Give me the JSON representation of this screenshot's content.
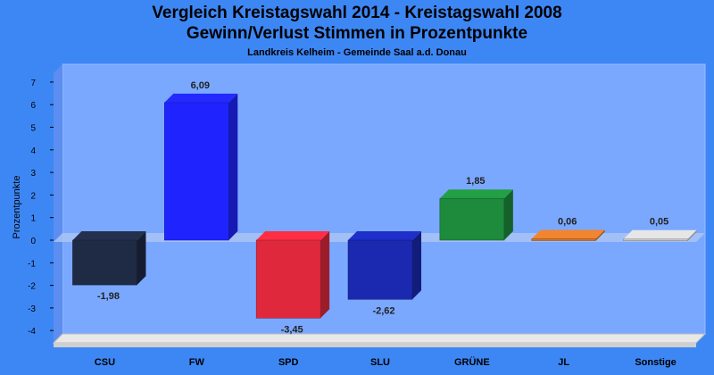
{
  "chart_data": {
    "type": "bar",
    "title": "Vergleich Kreistagswahl 2014 - Kreistagswahl 2008",
    "subtitle": "Gewinn/Verlust Stimmen in Prozentpunkte",
    "caption": "Landkreis Kelheim - Gemeinde Saal a.d. Donau",
    "ylabel": "Prozentpunkte",
    "xlabel": "",
    "ylim": [
      -4,
      7
    ],
    "yticks": [
      7,
      6,
      5,
      4,
      3,
      2,
      1,
      0,
      -1,
      -2,
      -3,
      -4
    ],
    "grid": false,
    "legend": "none",
    "categories": [
      "CSU",
      "FW",
      "SPD",
      "SLU",
      "GRÜNE",
      "JL",
      "Sonstige"
    ],
    "values": [
      -1.98,
      6.09,
      -3.45,
      -2.62,
      1.85,
      0.06,
      0.05
    ],
    "value_labels": [
      "-1,98",
      "6,09",
      "-3,45",
      "-2,62",
      "1,85",
      "0,06",
      "0,05"
    ],
    "colors": [
      "#1f2a44",
      "#1f24ff",
      "#e0283c",
      "#1a29b0",
      "#1e8a3c",
      "#d2742a",
      "#c8c8c8"
    ]
  },
  "colors": {
    "background": "#3d87f5",
    "plot_area": "#7aa8ff",
    "plot_wall_left": "#5b8ef0",
    "plot_floor": "#e8e8e8"
  }
}
